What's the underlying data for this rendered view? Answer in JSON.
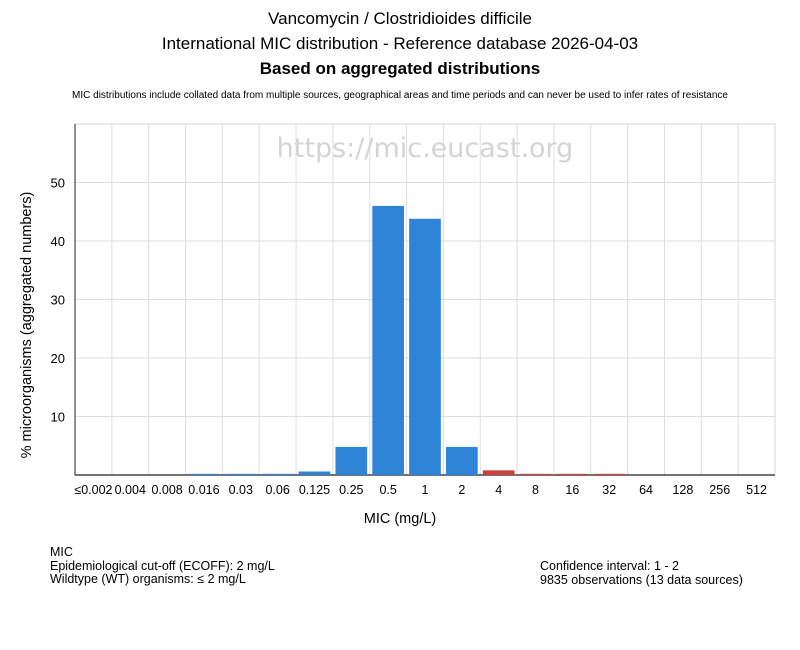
{
  "header": {
    "title": "Vancomycin / Clostridioides difficile",
    "subtitle": "International MIC distribution - Reference database 2026-04-03",
    "basis": "Based on aggregated distributions",
    "note": "MIC distributions include collated data from multiple sources, geographical areas and time periods and can never be used to infer rates of resistance"
  },
  "watermark": "https://mic.eucast.org",
  "chart_data": {
    "type": "bar",
    "title": "Vancomycin / Clostridioides difficile",
    "xlabel": "MIC (mg/L)",
    "ylabel": "% microorganisms (aggregated numbers)",
    "ylim": [
      0,
      60
    ],
    "yticks": [
      10,
      20,
      30,
      40,
      50
    ],
    "grid": true,
    "categories": [
      "≤0.002",
      "0.004",
      "0.008",
      "0.016",
      "0.03",
      "0.06",
      "0.125",
      "0.25",
      "0.5",
      "1",
      "2",
      "4",
      "8",
      "16",
      "32",
      "64",
      "128",
      "256",
      "512"
    ],
    "values": [
      0,
      0,
      0,
      0.2,
      0.2,
      0.2,
      0.6,
      4.8,
      46.0,
      43.8,
      4.8,
      0.8,
      0.2,
      0.2,
      0.2,
      0,
      0,
      0,
      0
    ],
    "bar_colors": [
      "#2f84d8",
      "#2f84d8",
      "#2f84d8",
      "#2f84d8",
      "#2f84d8",
      "#2f84d8",
      "#2f84d8",
      "#2f84d8",
      "#2f84d8",
      "#2f84d8",
      "#2f84d8",
      "#c84141",
      "#c84141",
      "#c84141",
      "#c84141",
      "#c84141",
      "#c84141",
      "#c84141",
      "#c84141"
    ]
  },
  "footer": {
    "left": [
      "MIC",
      "Epidemiological cut-off (ECOFF): 2 mg/L",
      "Wildtype (WT) organisms: ≤ 2 mg/L"
    ],
    "right": [
      "Confidence interval: 1 - 2",
      "9835 observations (13 data sources)"
    ]
  }
}
